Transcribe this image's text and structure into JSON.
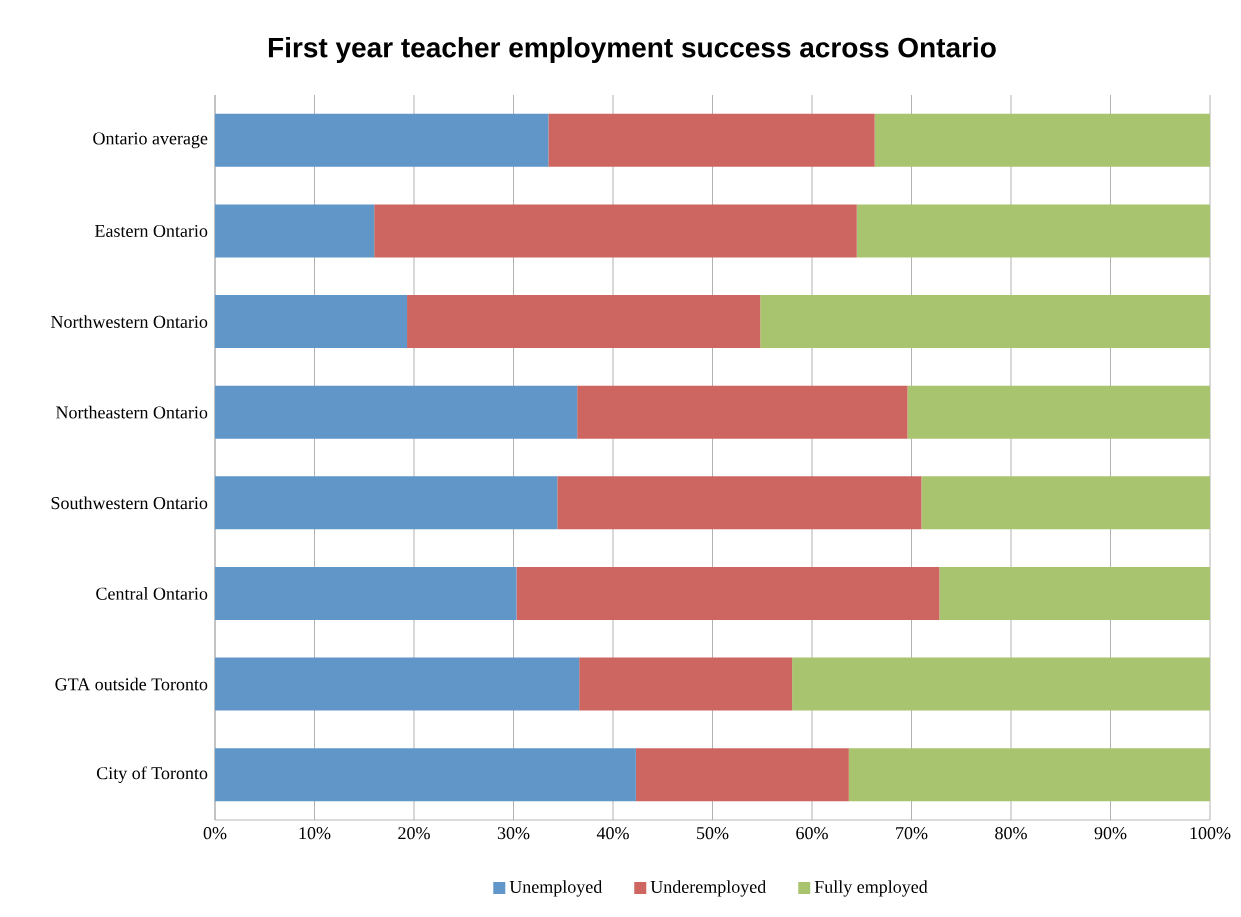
{
  "chart_data": {
    "type": "bar",
    "orientation": "horizontal",
    "stacked": true,
    "title": "First year teacher employment success across Ontario",
    "categories": [
      "Ontario average",
      "Eastern Ontario",
      "Northwestern Ontario",
      "Northeastern Ontario",
      "Southwestern Ontario",
      "Central Ontario",
      "GTA outside Toronto",
      "City of Toronto"
    ],
    "series": [
      {
        "name": "Unemployed",
        "color": "#6096c8",
        "values": [
          33.5,
          16.0,
          19.3,
          36.4,
          34.4,
          30.3,
          36.6,
          42.3
        ]
      },
      {
        "name": "Underemployed",
        "color": "#cd6660",
        "values": [
          32.8,
          48.5,
          35.5,
          33.2,
          36.6,
          42.5,
          21.4,
          21.4
        ]
      },
      {
        "name": "Fully employed",
        "color": "#a9c46e",
        "values": [
          33.7,
          35.5,
          45.2,
          30.4,
          29.0,
          27.2,
          42.0,
          36.3
        ]
      }
    ],
    "xlim": [
      0,
      100
    ],
    "xticks": [
      {
        "value": 0,
        "label": "0%"
      },
      {
        "value": 10,
        "label": "10%"
      },
      {
        "value": 20,
        "label": "20%"
      },
      {
        "value": 30,
        "label": "30%"
      },
      {
        "value": 40,
        "label": "40%"
      },
      {
        "value": 50,
        "label": "50%"
      },
      {
        "value": 60,
        "label": "60%"
      },
      {
        "value": 70,
        "label": "70%"
      },
      {
        "value": 80,
        "label": "80%"
      },
      {
        "value": 90,
        "label": "90%"
      },
      {
        "value": 100,
        "label": "100%"
      }
    ],
    "grid": "x",
    "legend": "bottom"
  }
}
